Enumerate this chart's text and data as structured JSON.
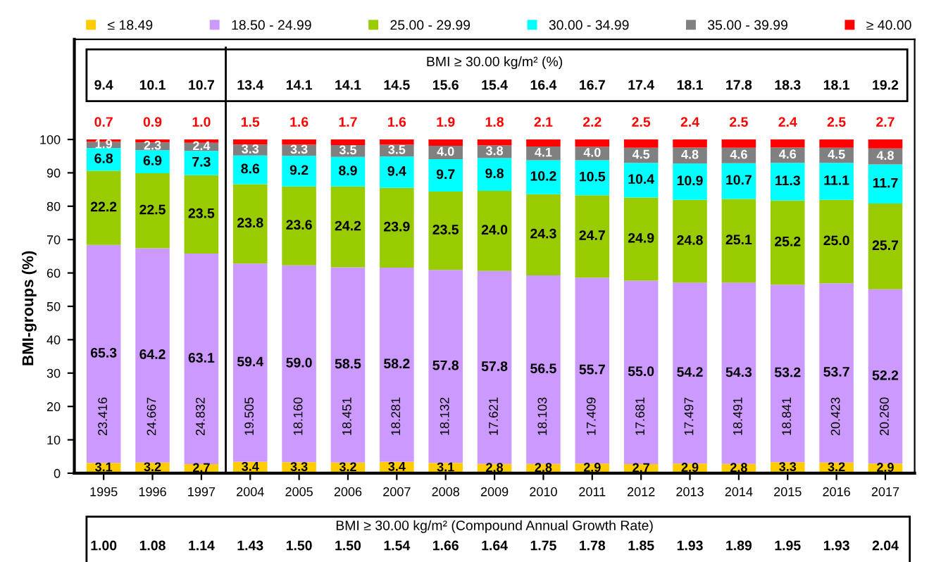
{
  "chart_data": {
    "type": "bar",
    "stacked": true,
    "ylabel": "BMI-groups (%)",
    "ylim": [
      0,
      130
    ],
    "yticks": [
      0,
      10,
      20,
      30,
      40,
      50,
      60,
      70,
      80,
      90,
      100
    ],
    "grid": false,
    "legend": "top",
    "marker": "square",
    "categories": [
      "1995",
      "1996",
      "1997",
      "2004",
      "2005",
      "2006",
      "2007",
      "2008",
      "2009",
      "2010",
      "2011",
      "2012",
      "2013",
      "2014",
      "2015",
      "2016",
      "2017"
    ],
    "series": [
      {
        "name": "≤ 18.49",
        "color": "#ffcc00",
        "values": [
          3.1,
          3.2,
          2.7,
          3.4,
          3.3,
          3.2,
          3.4,
          3.1,
          2.8,
          2.8,
          2.9,
          2.7,
          2.9,
          2.8,
          3.3,
          3.2,
          2.9
        ],
        "value_labels": [
          "3.1",
          "3.2",
          "2.7",
          "3.4",
          "3.3",
          "3.2",
          "3.4",
          "3.1",
          "2.8",
          "2.8",
          "2.9",
          "2.7",
          "2.9",
          "2.8",
          "3.3",
          "3.2",
          "2.9"
        ]
      },
      {
        "name": "18.50 - 24.99",
        "color": "#cc99ff",
        "values": [
          65.3,
          64.2,
          63.1,
          59.4,
          59.0,
          58.5,
          58.2,
          57.8,
          57.8,
          56.5,
          55.7,
          55.0,
          54.2,
          54.3,
          53.2,
          53.7,
          52.2
        ],
        "value_labels": [
          "65.3",
          "64.2",
          "63.1",
          "59.4",
          "59.0",
          "58.5",
          "58.2",
          "57.8",
          "57.8",
          "56.5",
          "55.7",
          "55.0",
          "54.2",
          "54.3",
          "53.2",
          "53.7",
          "52.2"
        ]
      },
      {
        "name": "25.00 - 29.99",
        "color": "#99cc00",
        "values": [
          22.2,
          22.5,
          23.5,
          23.8,
          23.6,
          24.2,
          23.9,
          23.5,
          24.0,
          24.3,
          24.7,
          24.9,
          24.8,
          25.1,
          25.2,
          25.0,
          25.7
        ],
        "value_labels": [
          "22.2",
          "22.5",
          "23.5",
          "23.8",
          "23.6",
          "24.2",
          "23.9",
          "23.5",
          "24.0",
          "24.3",
          "24.7",
          "24.9",
          "24.8",
          "25.1",
          "25.2",
          "25.0",
          "25.7"
        ]
      },
      {
        "name": "30.00 - 34.99",
        "color": "#00ffff",
        "values": [
          6.8,
          6.9,
          7.3,
          8.6,
          9.2,
          8.9,
          9.4,
          9.7,
          9.8,
          10.2,
          10.5,
          10.4,
          10.9,
          10.7,
          11.3,
          11.1,
          11.7
        ],
        "value_labels": [
          "6.8",
          "6.9",
          "7.3",
          "8.6",
          "9.2",
          "8.9",
          "9.4",
          "9.7",
          "9.8",
          "10.2",
          "10.5",
          "10.4",
          "10.9",
          "10.7",
          "11.3",
          "11.1",
          "11.7"
        ]
      },
      {
        "name": "35.00 - 39.99",
        "color": "#808080",
        "values": [
          1.9,
          2.3,
          2.4,
          3.3,
          3.3,
          3.5,
          3.5,
          4.0,
          3.8,
          4.1,
          4.0,
          4.5,
          4.8,
          4.6,
          4.6,
          4.5,
          4.8
        ],
        "value_labels": [
          "1.9",
          "2.3",
          "2.4",
          "3.3",
          "3.3",
          "3.5",
          "3.5",
          "4.0",
          "3.8",
          "4.1",
          "4.0",
          "4.5",
          "4.8",
          "4.6",
          "4.6",
          "4.5",
          "4.8"
        ]
      },
      {
        "name": "≥ 40.00",
        "color": "#ff0000",
        "values": [
          0.7,
          0.9,
          1.0,
          1.5,
          1.6,
          1.7,
          1.6,
          1.9,
          1.8,
          2.1,
          2.2,
          2.5,
          2.4,
          2.5,
          2.4,
          2.5,
          2.7
        ],
        "value_labels": [
          "0.7",
          "0.9",
          "1.0",
          "1.5",
          "1.6",
          "1.7",
          "1.6",
          "1.9",
          "1.8",
          "2.1",
          "2.2",
          "2.5",
          "2.4",
          "2.5",
          "2.4",
          "2.5",
          "2.7"
        ]
      }
    ],
    "annotations": [
      "BMI ≥ 30.00 kg/m² (%)",
      "BMI ≥ 30.00 kg/m² (Compound Annual Growth Rate)",
      "9.4",
      "10.1",
      "10.7",
      "13.4",
      "14.1",
      "14.1",
      "14.5",
      "15.6",
      "15.4",
      "16.4",
      "16.7",
      "17.4",
      "18.1",
      "17.8",
      "18.3",
      "18.1",
      "19.2",
      "23.416",
      "24.667",
      "24.832",
      "19.505",
      "18.160",
      "18.451",
      "18.281",
      "18.132",
      "17.621",
      "18.103",
      "17.409",
      "17.681",
      "17.497",
      "18.491",
      "18.841",
      "20.423",
      "20.260",
      "1.00",
      "1.08",
      "1.14",
      "1.43",
      "1.50",
      "1.50",
      "1.54",
      "1.66",
      "1.64",
      "1.75",
      "1.78",
      "1.85",
      "1.93",
      "1.89",
      "1.95",
      "1.93",
      "2.04"
    ]
  }
}
